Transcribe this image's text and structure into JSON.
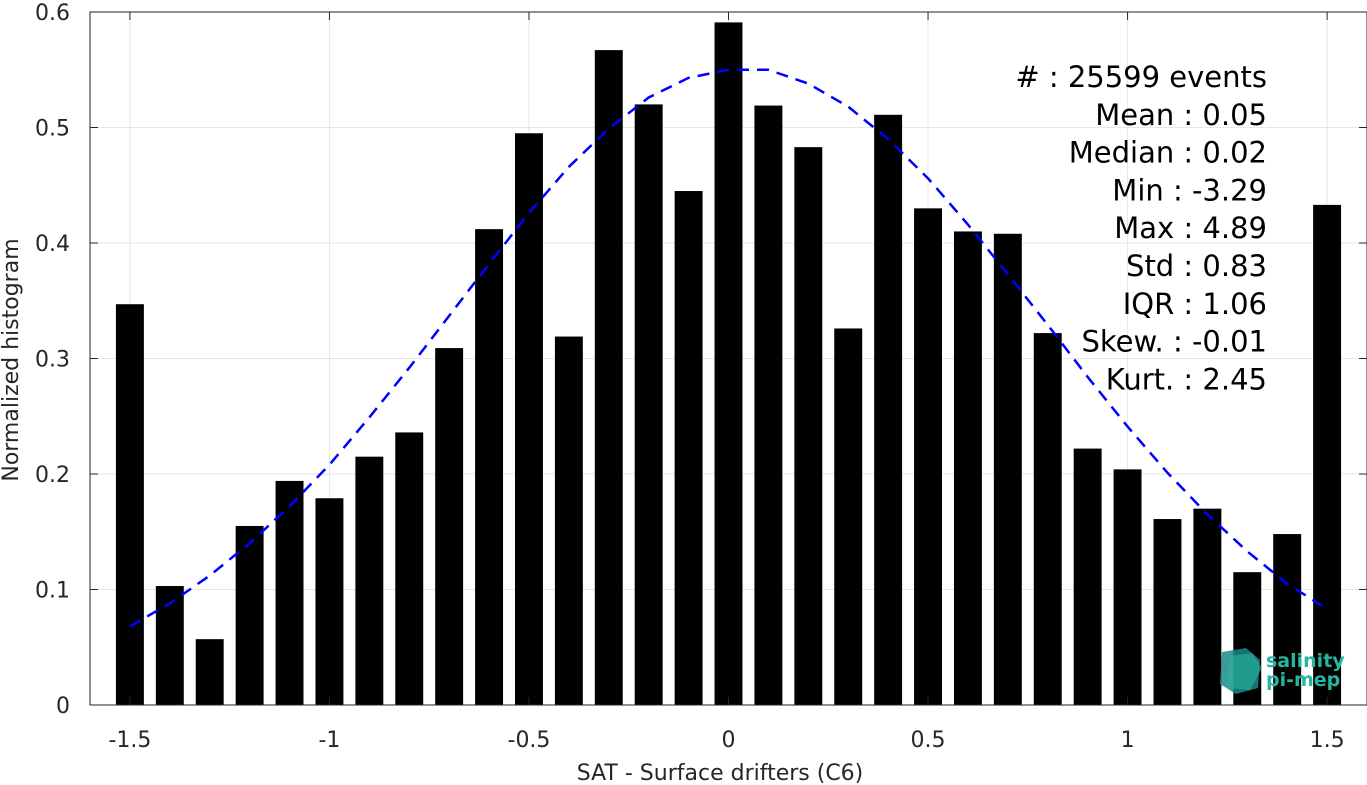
{
  "chart_data": {
    "type": "bar",
    "xlabel": "SAT - Surface drifters (C6)",
    "ylabel": "Normalized histogram",
    "xlim": [
      -1.6,
      1.6
    ],
    "ylim": [
      0,
      0.6
    ],
    "xticks": [
      -1.5,
      -1,
      -0.5,
      0,
      0.5,
      1,
      1.5
    ],
    "xtick_labels": [
      "-1.5",
      "-1",
      "-0.5",
      "0",
      "0.5",
      "1",
      "1.5"
    ],
    "yticks": [
      0,
      0.1,
      0.2,
      0.3,
      0.4,
      0.5,
      0.6
    ],
    "ytick_labels": [
      "0",
      "0.1",
      "0.2",
      "0.3",
      "0.4",
      "0.5",
      "0.6"
    ],
    "grid": true,
    "bar_color": "#000000",
    "bars": {
      "x": [
        -1.5,
        -1.4,
        -1.3,
        -1.2,
        -1.1,
        -1.0,
        -0.9,
        -0.8,
        -0.7,
        -0.6,
        -0.5,
        -0.4,
        -0.3,
        -0.2,
        -0.1,
        0.0,
        0.1,
        0.2,
        0.3,
        0.4,
        0.5,
        0.6,
        0.7,
        0.8,
        0.9,
        1.0,
        1.1,
        1.2,
        1.3,
        1.4,
        1.5
      ],
      "values": [
        0.347,
        0.103,
        0.057,
        0.155,
        0.194,
        0.179,
        0.215,
        0.236,
        0.309,
        0.412,
        0.495,
        0.319,
        0.567,
        0.52,
        0.445,
        0.591,
        0.519,
        0.483,
        0.326,
        0.511,
        0.43,
        0.41,
        0.408,
        0.322,
        0.222,
        0.204,
        0.161,
        0.17,
        0.115,
        0.148,
        0.433
      ]
    },
    "fit_curve": {
      "style": "dashed",
      "color": "#0000ff",
      "x": [
        -1.5,
        -1.4,
        -1.3,
        -1.2,
        -1.1,
        -1.0,
        -0.9,
        -0.8,
        -0.7,
        -0.6,
        -0.5,
        -0.4,
        -0.3,
        -0.2,
        -0.1,
        0.0,
        0.1,
        0.2,
        0.3,
        0.4,
        0.5,
        0.6,
        0.7,
        0.8,
        0.9,
        1.0,
        1.1,
        1.2,
        1.3,
        1.4,
        1.5
      ],
      "y": [
        0.068,
        0.088,
        0.112,
        0.14,
        0.172,
        0.208,
        0.249,
        0.292,
        0.337,
        0.382,
        0.426,
        0.466,
        0.499,
        0.526,
        0.543,
        0.55,
        0.55,
        0.538,
        0.518,
        0.49,
        0.456,
        0.416,
        0.373,
        0.329,
        0.284,
        0.241,
        0.201,
        0.165,
        0.133,
        0.105,
        0.083
      ]
    },
    "annotation_lines": [
      "#  : 25599 events",
      "Mean : 0.05",
      "Median : 0.02",
      "Min : -3.29",
      "Max : 4.89",
      "Std : 0.83",
      "IQR : 1.06",
      "Skew. : -0.01",
      "Kurt. : 2.45"
    ]
  },
  "logo": {
    "line1": "salinity",
    "line2": "pi-mep"
  }
}
